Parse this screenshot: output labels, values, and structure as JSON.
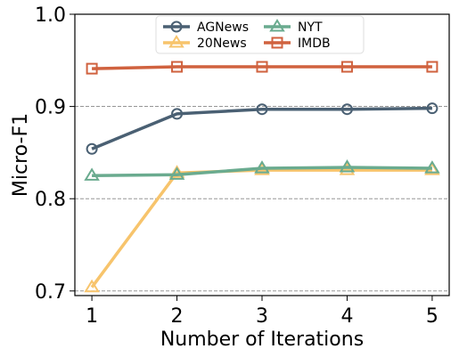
{
  "chart_data": {
    "type": "line",
    "title": "",
    "xlabel": "Number of Iterations",
    "ylabel": "Micro-F1",
    "x": [
      1,
      2,
      3,
      4,
      5
    ],
    "xlim": [
      0.8,
      5.2
    ],
    "ylim": [
      0.695,
      1.0
    ],
    "yticks": [
      0.7,
      0.8,
      0.9,
      1.0
    ],
    "ytick_labels": [
      "0.7",
      "0.8",
      "0.9",
      "1.0"
    ],
    "xticks": [
      1,
      2,
      3,
      4,
      5
    ],
    "xtick_labels": [
      "1",
      "2",
      "3",
      "4",
      "5"
    ],
    "grid": "horizontal dashed at 0.7, 0.8, 0.9",
    "legend_position": "top-center",
    "series": [
      {
        "name": "AGNews",
        "values": [
          0.854,
          0.892,
          0.897,
          0.897,
          0.898
        ],
        "color": "#4a6073",
        "marker": "circle"
      },
      {
        "name": "20News",
        "values": [
          0.704,
          0.828,
          0.831,
          0.831,
          0.831
        ],
        "color": "#f7c46c",
        "marker": "triangle"
      },
      {
        "name": "NYT",
        "values": [
          0.825,
          0.826,
          0.833,
          0.834,
          0.833
        ],
        "color": "#6aab8f",
        "marker": "triangle"
      },
      {
        "name": "IMDB",
        "values": [
          0.941,
          0.943,
          0.943,
          0.943,
          0.943
        ],
        "color": "#d0623f",
        "marker": "square"
      }
    ]
  }
}
